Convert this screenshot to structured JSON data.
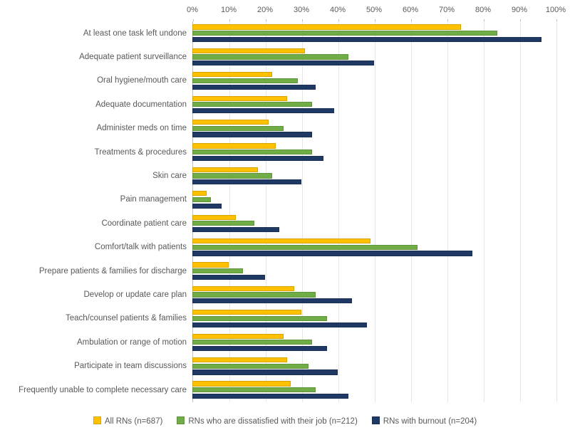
{
  "chart": {
    "type": "bar-horizontal-grouped",
    "xlim": [
      0,
      100
    ],
    "xtick_step": 10,
    "xtick_suffix": "%",
    "background_color": "#ffffff",
    "grid_color": "#e6e6e6",
    "axis_color": "#bfbfbf",
    "text_color": "#595959",
    "label_fontsize": 11.5,
    "tick_fontsize": 11,
    "bar_group_height": 33.4,
    "bar_height": 7.2,
    "series": [
      {
        "key": "all",
        "label": "All RNs (n=687)",
        "color": "#ffc000"
      },
      {
        "key": "dissat",
        "label": "RNs who are dissatisfied with their job (n=212)",
        "color": "#70ad47"
      },
      {
        "key": "burn",
        "label": "RNs with burnout (n=204)",
        "color": "#1f3864"
      }
    ],
    "categories": [
      {
        "label": "At least one task left undone",
        "all": 74,
        "dissat": 84,
        "burn": 96
      },
      {
        "label": "Adequate patient surveillance",
        "all": 31,
        "dissat": 43,
        "burn": 50
      },
      {
        "label": "Oral hygiene/mouth care",
        "all": 22,
        "dissat": 29,
        "burn": 34
      },
      {
        "label": "Adequate documentation",
        "all": 26,
        "dissat": 33,
        "burn": 39
      },
      {
        "label": "Administer meds on time",
        "all": 21,
        "dissat": 25,
        "burn": 33
      },
      {
        "label": "Treatments & procedures",
        "all": 23,
        "dissat": 33,
        "burn": 36
      },
      {
        "label": "Skin care",
        "all": 18,
        "dissat": 22,
        "burn": 30
      },
      {
        "label": "Pain management",
        "all": 4,
        "dissat": 5,
        "burn": 8
      },
      {
        "label": "Coordinate patient care",
        "all": 12,
        "dissat": 17,
        "burn": 24
      },
      {
        "label": "Comfort/talk with patients",
        "all": 49,
        "dissat": 62,
        "burn": 77
      },
      {
        "label": "Prepare patients & families for discharge",
        "all": 10,
        "dissat": 14,
        "burn": 20
      },
      {
        "label": "Develop or update care plan",
        "all": 28,
        "dissat": 34,
        "burn": 44
      },
      {
        "label": "Teach/counsel patients & families",
        "all": 30,
        "dissat": 37,
        "burn": 48
      },
      {
        "label": "Ambulation or range of motion",
        "all": 25,
        "dissat": 33,
        "burn": 37
      },
      {
        "label": "Participate in team discussions",
        "all": 26,
        "dissat": 32,
        "burn": 40
      },
      {
        "label": "Frequently unable to complete necessary care",
        "all": 27,
        "dissat": 34,
        "burn": 43
      }
    ]
  }
}
